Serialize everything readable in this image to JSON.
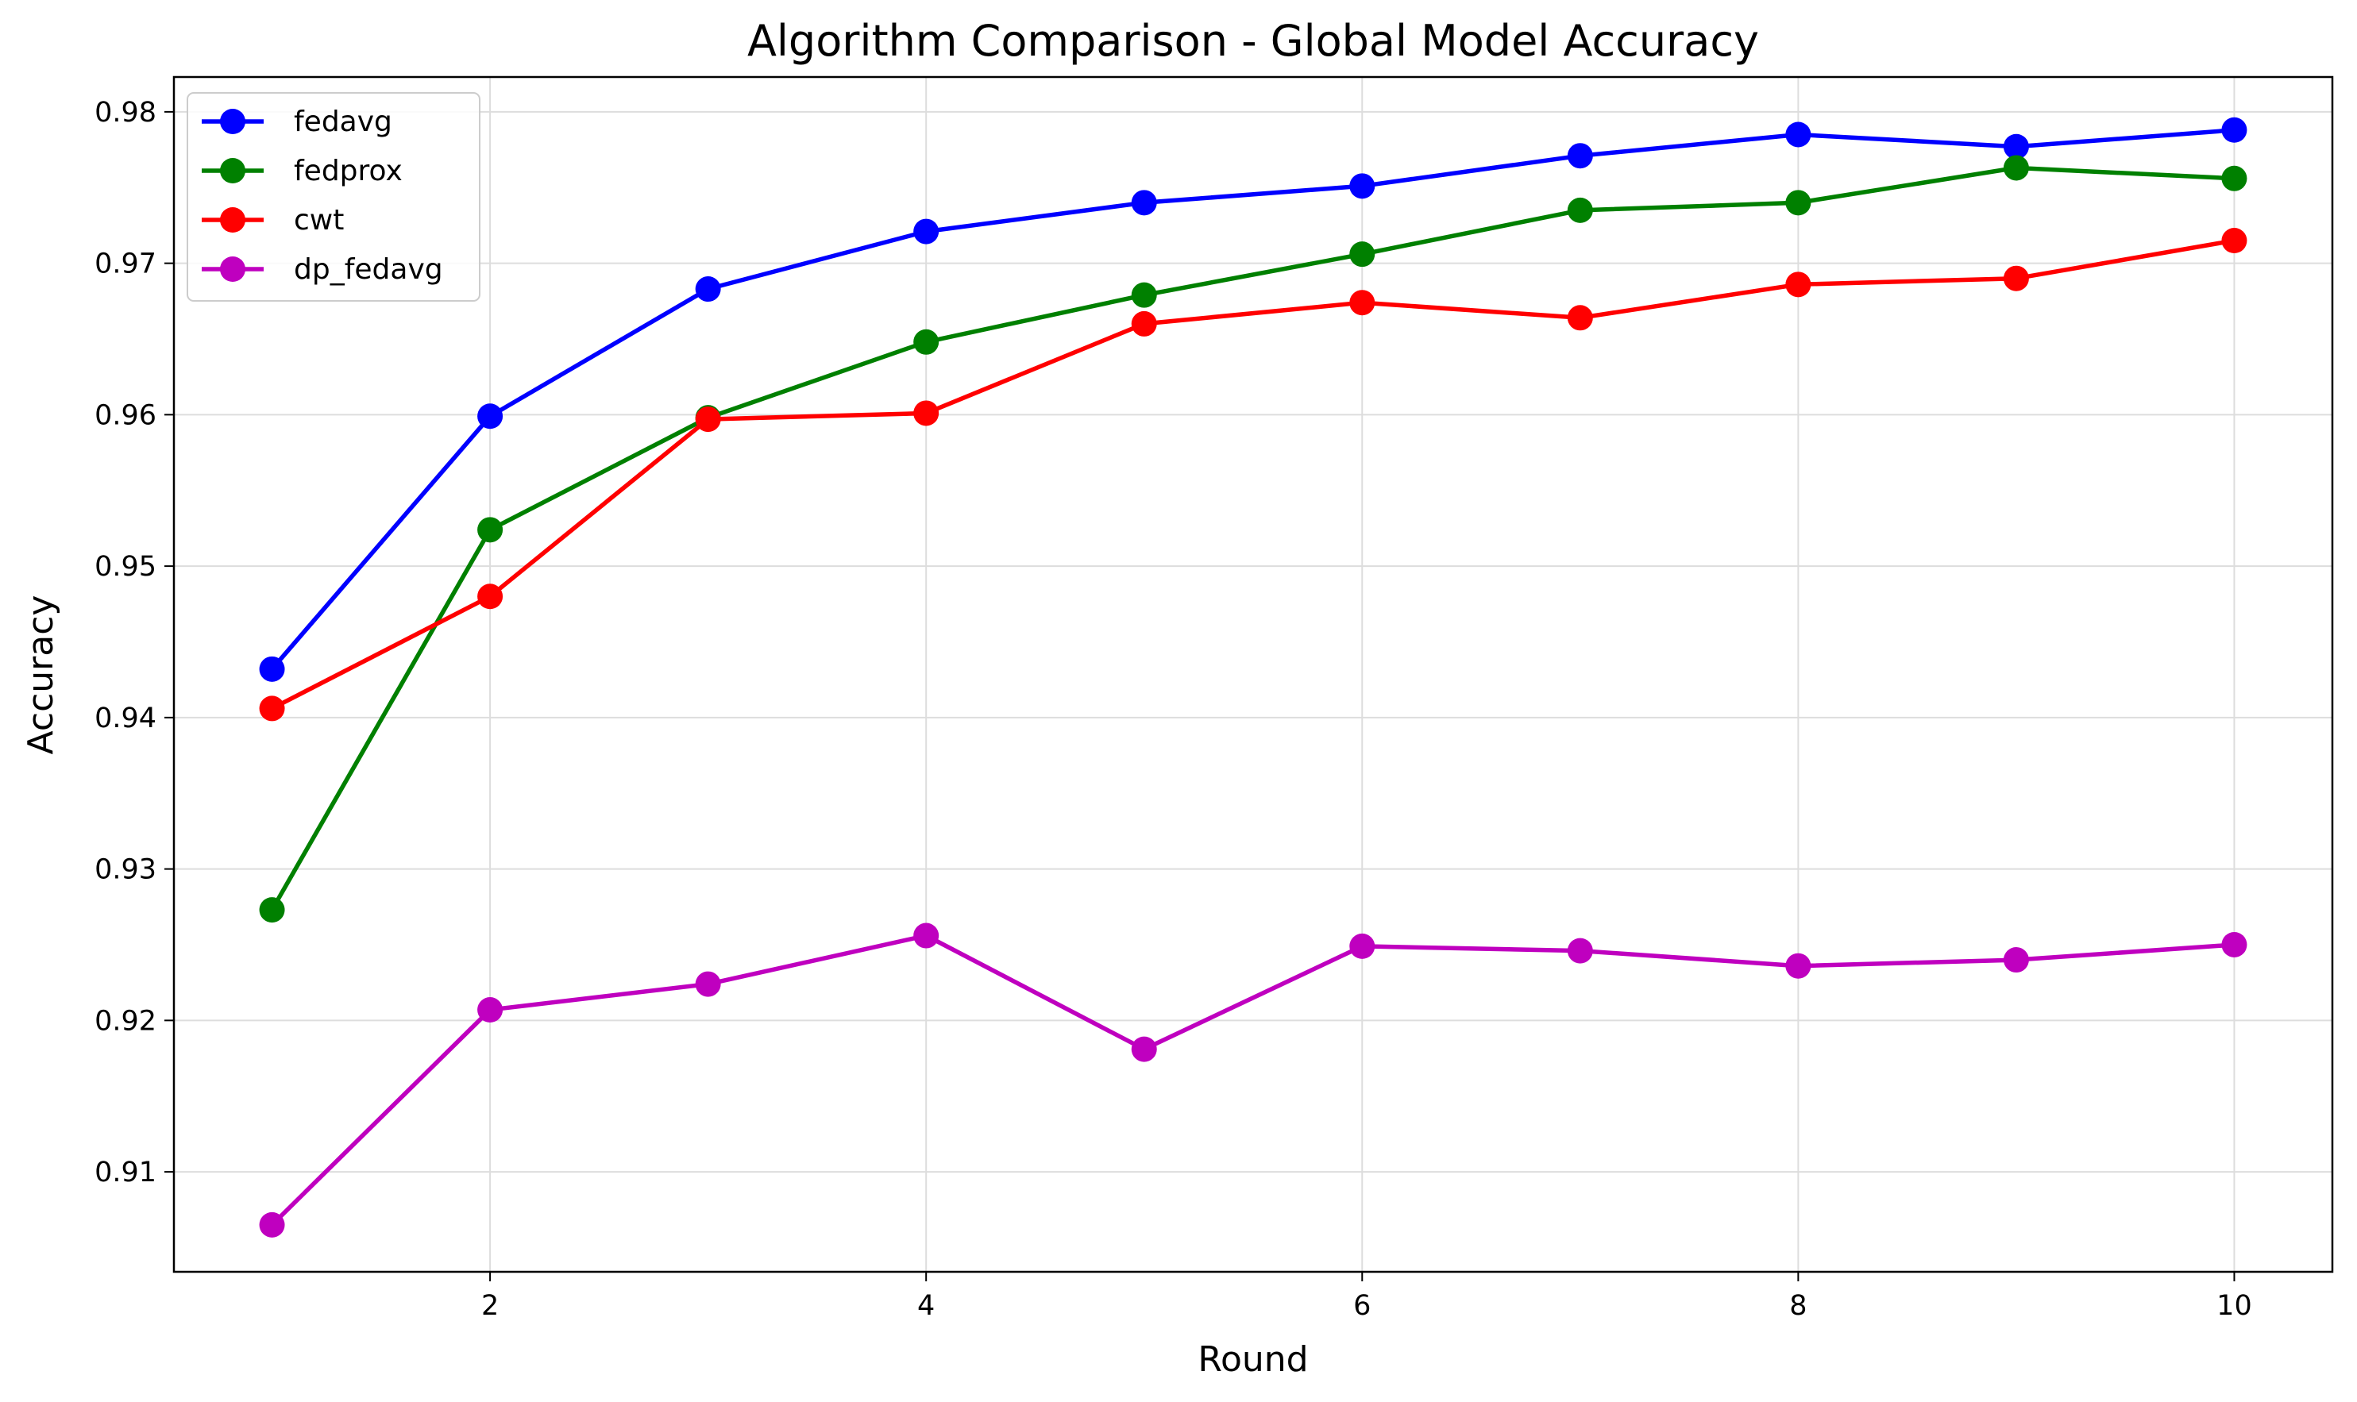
{
  "chart_data": {
    "type": "line",
    "title": "Algorithm Comparison - Global Model Accuracy",
    "xlabel": "Round",
    "ylabel": "Accuracy",
    "x": [
      1,
      2,
      3,
      4,
      5,
      6,
      7,
      8,
      9,
      10
    ],
    "xlim": [
      0.55,
      10.45
    ],
    "ylim": [
      0.9034,
      0.9823
    ],
    "xticks": [
      2,
      4,
      6,
      8,
      10
    ],
    "yticks": [
      0.91,
      0.92,
      0.93,
      0.94,
      0.95,
      0.96,
      0.97,
      0.98
    ],
    "xtick_labels": [
      "2",
      "4",
      "6",
      "8",
      "10"
    ],
    "ytick_labels": [
      "0.91",
      "0.92",
      "0.93",
      "0.94",
      "0.95",
      "0.96",
      "0.97",
      "0.98"
    ],
    "grid": true,
    "legend_position": "upper-left",
    "series": [
      {
        "name": "fedavg",
        "color": "#0000ff",
        "values": [
          0.9432,
          0.9599,
          0.9683,
          0.9721,
          0.974,
          0.9751,
          0.9771,
          0.9785,
          0.9777,
          0.9788
        ]
      },
      {
        "name": "fedprox",
        "color": "#008000",
        "values": [
          0.9273,
          0.9524,
          0.9598,
          0.9648,
          0.9679,
          0.9706,
          0.9735,
          0.974,
          0.9763,
          0.9756
        ]
      },
      {
        "name": "cwt",
        "color": "#ff0000",
        "values": [
          0.9406,
          0.948,
          0.9597,
          0.9601,
          0.966,
          0.9674,
          0.9664,
          0.9686,
          0.969,
          0.9715
        ]
      },
      {
        "name": "dp_fedavg",
        "color": "#bf00bf",
        "values": [
          0.9065,
          0.9207,
          0.9224,
          0.9256,
          0.9181,
          0.9249,
          0.9246,
          0.9236,
          0.924,
          0.925
        ]
      }
    ]
  }
}
